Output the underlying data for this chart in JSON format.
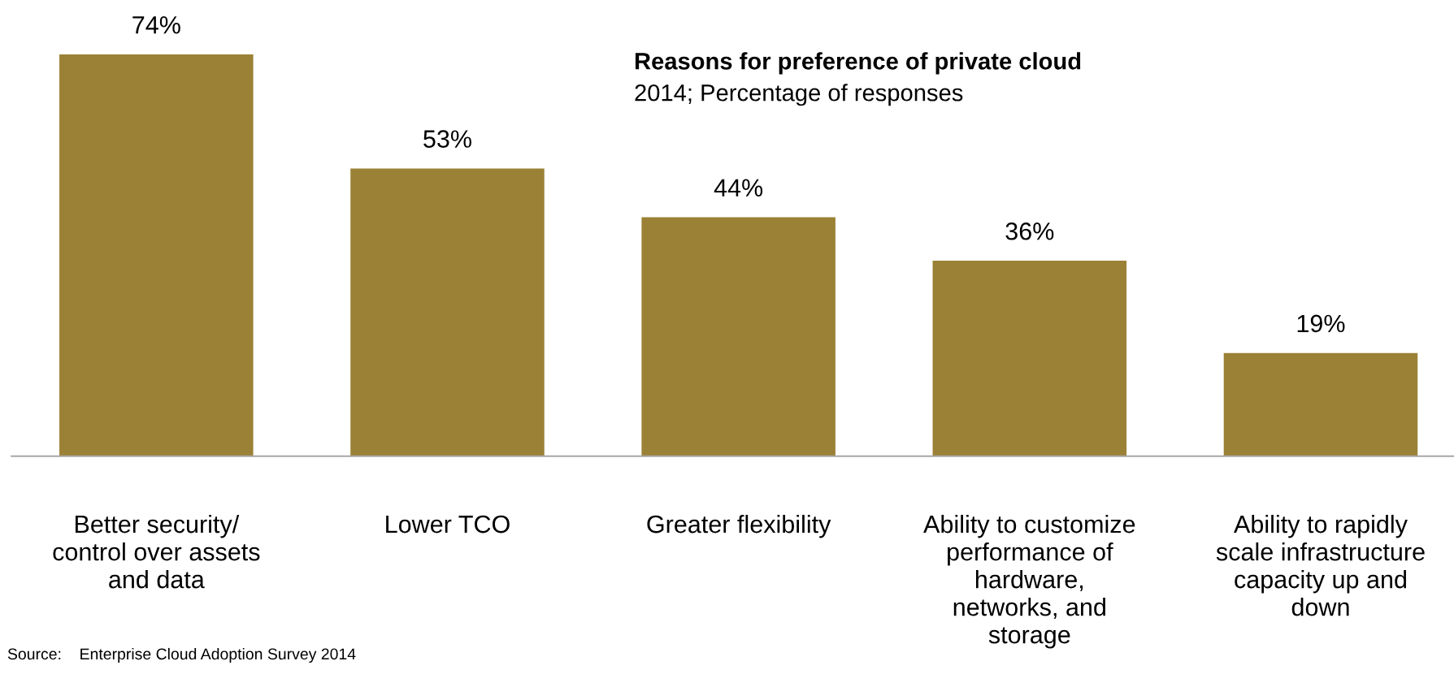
{
  "chart_data": {
    "type": "bar",
    "title": "Reasons for preference of private cloud",
    "subtitle": "2014; Percentage of responses",
    "categories": [
      "Better security/\ncontrol over assets\nand data",
      "Lower TCO",
      "Greater flexibility",
      "Ability to customize\nperformance of\nhardware,\nnetworks, and\nstorage",
      "Ability to rapidly\nscale infrastructure\ncapacity up and\ndown"
    ],
    "values": [
      74,
      53,
      44,
      36,
      19
    ],
    "color": "#9b8136",
    "value_labels": [
      "74%",
      "53%",
      "44%",
      "36%",
      "19%"
    ],
    "annotations": [
      "Source:    Enterprise Cloud Adoption Survey 2014"
    ],
    "grid": false,
    "legend": false
  }
}
